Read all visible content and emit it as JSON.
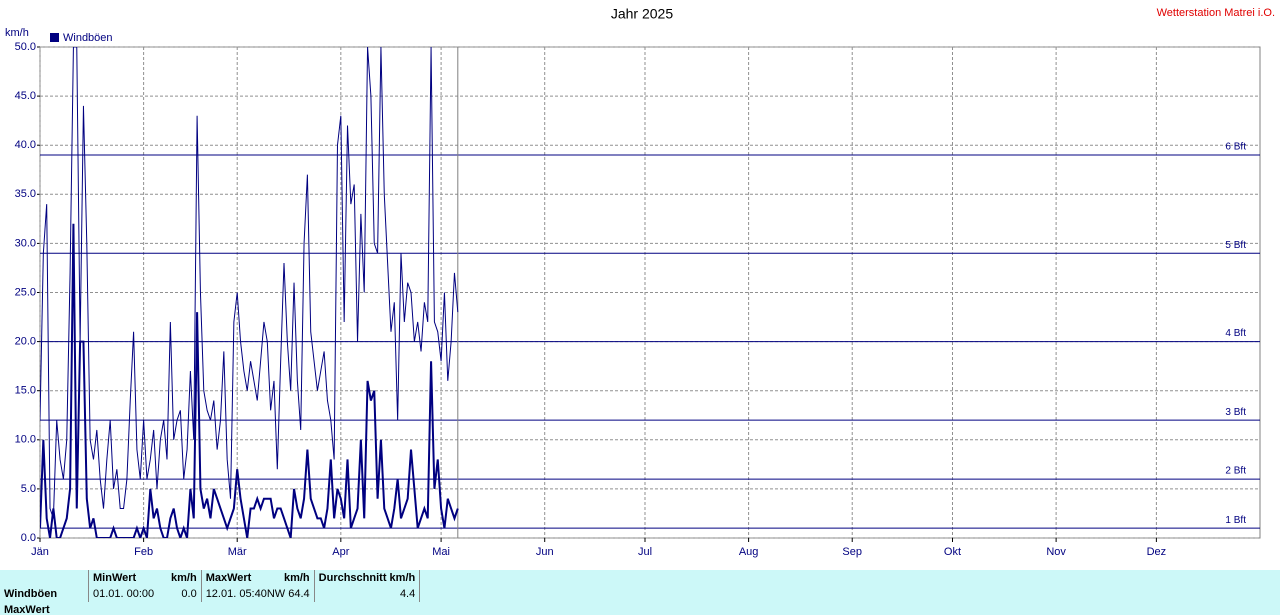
{
  "chart_data": {
    "type": "line",
    "title": "Jahr 2025",
    "station": "Wetterstation Matrei i.O.",
    "y_label": "km/h",
    "xlim": [
      1,
      366
    ],
    "xticks": [
      {
        "value": 1,
        "label": "Jän"
      },
      {
        "value": 32,
        "label": "Feb"
      },
      {
        "value": 60,
        "label": "Mär"
      },
      {
        "value": 91,
        "label": "Apr"
      },
      {
        "value": 121,
        "label": "Mai"
      },
      {
        "value": 152,
        "label": "Jun"
      },
      {
        "value": 182,
        "label": "Jul"
      },
      {
        "value": 213,
        "label": "Aug"
      },
      {
        "value": 244,
        "label": "Sep"
      },
      {
        "value": 274,
        "label": "Okt"
      },
      {
        "value": 305,
        "label": "Nov"
      },
      {
        "value": 335,
        "label": "Dez"
      }
    ],
    "ylim": [
      0,
      50
    ],
    "yticks": [
      {
        "value": 0,
        "label": "0.0"
      },
      {
        "value": 5,
        "label": "5.0"
      },
      {
        "value": 10,
        "label": "10.0"
      },
      {
        "value": 15,
        "label": "15.0"
      },
      {
        "value": 20,
        "label": "20.0"
      },
      {
        "value": 25,
        "label": "25.0"
      },
      {
        "value": 30,
        "label": "30.0"
      },
      {
        "value": 35,
        "label": "35.0"
      },
      {
        "value": 40,
        "label": "40.0"
      },
      {
        "value": 45,
        "label": "45.0"
      },
      {
        "value": 50,
        "label": "50.0"
      }
    ],
    "grid": true,
    "bft_lines": [
      {
        "value": 1,
        "label": "1 Bft"
      },
      {
        "value": 6,
        "label": "2 Bft"
      },
      {
        "value": 12,
        "label": "3 Bft"
      },
      {
        "value": 20,
        "label": "4 Bft"
      },
      {
        "value": 29,
        "label": "5 Bft"
      },
      {
        "value": 39,
        "label": "6 Bft"
      }
    ],
    "current_day": 126,
    "x": [
      1,
      2,
      3,
      4,
      5,
      6,
      7,
      8,
      9,
      10,
      11,
      12,
      13,
      14,
      15,
      16,
      17,
      18,
      19,
      20,
      21,
      22,
      23,
      24,
      25,
      26,
      27,
      28,
      29,
      30,
      31,
      32,
      33,
      34,
      35,
      36,
      37,
      38,
      39,
      40,
      41,
      42,
      43,
      44,
      45,
      46,
      47,
      48,
      49,
      50,
      51,
      52,
      53,
      54,
      55,
      56,
      57,
      58,
      59,
      60,
      61,
      62,
      63,
      64,
      65,
      66,
      67,
      68,
      69,
      70,
      71,
      72,
      73,
      74,
      75,
      76,
      77,
      78,
      79,
      80,
      81,
      82,
      83,
      84,
      85,
      86,
      87,
      88,
      89,
      90,
      91,
      92,
      93,
      94,
      95,
      96,
      97,
      98,
      99,
      100,
      101,
      102,
      103,
      104,
      105,
      106,
      107,
      108,
      109,
      110,
      111,
      112,
      113,
      114,
      115,
      116,
      117,
      118,
      119,
      120,
      121,
      122,
      123,
      124,
      125,
      126
    ],
    "series": [
      {
        "name": "Windböen",
        "color": "#000080",
        "width": 1,
        "values": [
          12,
          29,
          34,
          3,
          2,
          12,
          8,
          6,
          10,
          27,
          50,
          50,
          20,
          44,
          30,
          10,
          8,
          11,
          6,
          3,
          8,
          12,
          5,
          7,
          3,
          3,
          6,
          14,
          21,
          9,
          6,
          12,
          6,
          8,
          11,
          5,
          10,
          12,
          8,
          22,
          10,
          12,
          13,
          6,
          9,
          17,
          10,
          43,
          25,
          15,
          13,
          12,
          14,
          9,
          12,
          19,
          8,
          4,
          22,
          25,
          20,
          17,
          15,
          18,
          16,
          14,
          18,
          22,
          20,
          13,
          16,
          7,
          18,
          28,
          20,
          15,
          26,
          16,
          11,
          30,
          37,
          21,
          18,
          15,
          17,
          19,
          14,
          12,
          8,
          40,
          43,
          22,
          42,
          34,
          36,
          20,
          33,
          25,
          50,
          45,
          30,
          29,
          50,
          35,
          28,
          21,
          24,
          12,
          29,
          22,
          26,
          25,
          20,
          22,
          19,
          24,
          22,
          50,
          22,
          21,
          18,
          25,
          16,
          20,
          27,
          23
        ]
      },
      {
        "color": "#000080",
        "width": 2,
        "values": [
          1,
          10,
          2,
          0,
          3,
          0,
          0,
          1,
          2,
          5,
          32,
          3,
          20,
          20,
          4,
          1,
          2,
          0,
          0,
          0,
          0,
          0,
          1,
          0,
          0,
          0,
          0,
          0,
          0,
          1,
          0,
          1,
          0,
          5,
          2,
          3,
          1,
          0,
          0,
          2,
          3,
          1,
          0,
          1,
          0,
          5,
          2,
          23,
          5,
          3,
          4,
          2,
          5,
          4,
          3,
          2,
          1,
          2,
          3,
          7,
          4,
          2,
          0,
          3,
          3,
          4,
          3,
          4,
          4,
          4,
          2,
          3,
          3,
          2,
          1,
          0,
          5,
          3,
          2,
          4,
          9,
          4,
          3,
          2,
          2,
          1,
          3,
          8,
          2,
          5,
          4,
          2,
          8,
          1,
          2,
          3,
          10,
          2,
          16,
          14,
          15,
          4,
          10,
          3,
          2,
          1,
          3,
          6,
          2,
          3,
          4,
          9,
          5,
          1,
          2,
          3,
          2,
          18,
          5,
          8,
          3,
          1,
          4,
          3,
          2,
          3
        ]
      }
    ]
  },
  "table": {
    "headers": [
      "MinWert",
      "km/h",
      "MaxWert",
      "km/h",
      "Durchschnitt km/h"
    ],
    "rows": [
      [
        "Windböen",
        "01.01.  00:00",
        "0.0",
        "12.01.  05:40NW 64.4",
        "4.4"
      ],
      [
        "MaxWert"
      ]
    ]
  }
}
